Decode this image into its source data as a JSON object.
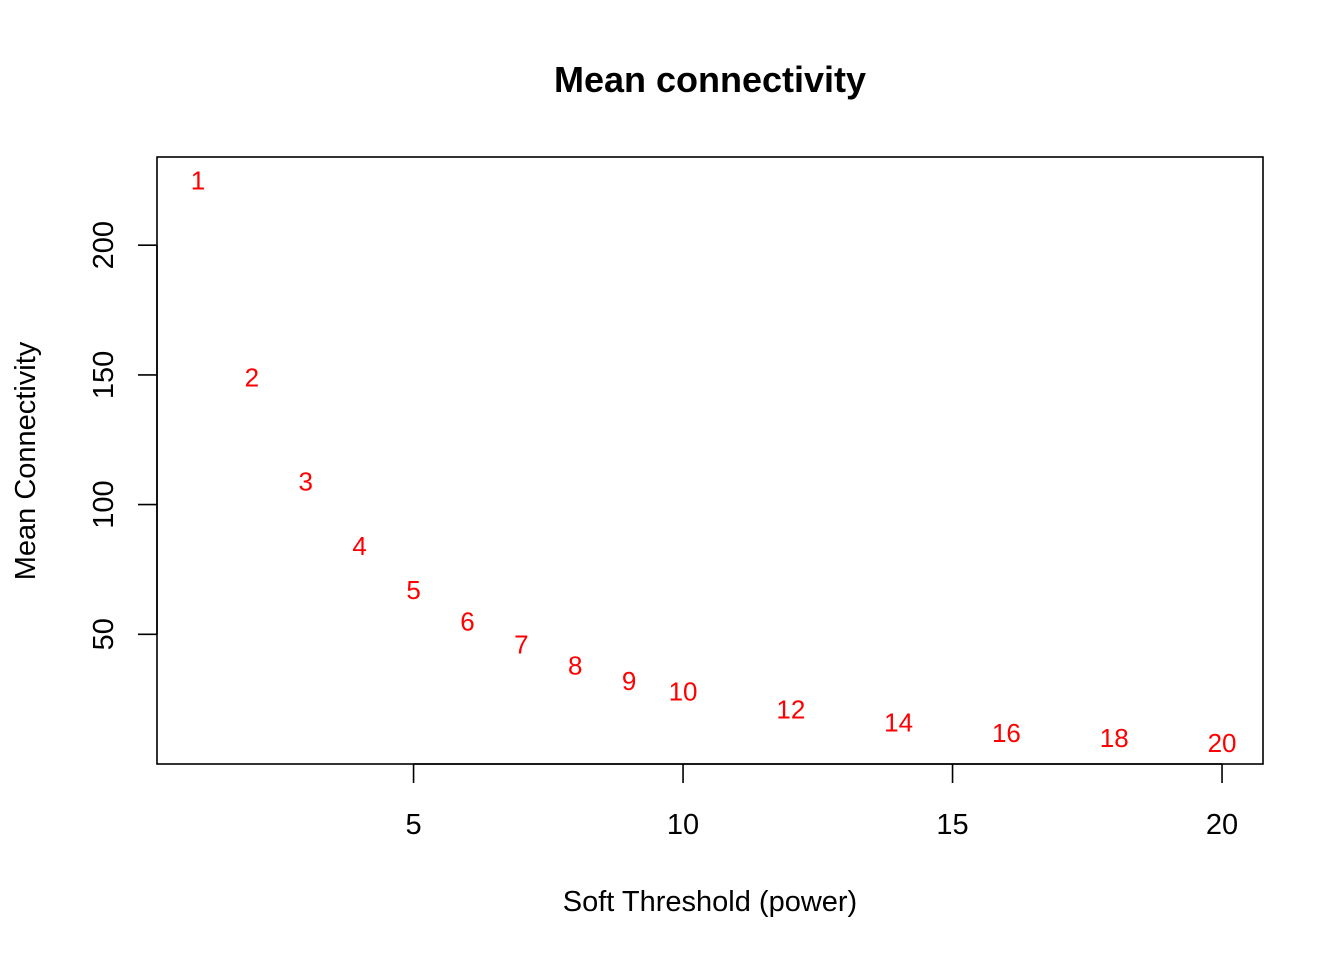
{
  "chart_data": {
    "type": "scatter",
    "title": "Mean connectivity",
    "xlabel": "Soft Threshold (power)",
    "ylabel": "Mean Connectivity",
    "xlim": [
      0.24,
      20.76
    ],
    "ylim": [
      0,
      234
    ],
    "x_ticks": [
      5,
      10,
      15,
      20
    ],
    "y_ticks": [
      50,
      100,
      150,
      200
    ],
    "grid": false,
    "legend": "none",
    "marker_color": "#FF0000",
    "points": [
      {
        "x": 1,
        "y": 225,
        "label": "1"
      },
      {
        "x": 2,
        "y": 149,
        "label": "2"
      },
      {
        "x": 3,
        "y": 109,
        "label": "3"
      },
      {
        "x": 4,
        "y": 84,
        "label": "4"
      },
      {
        "x": 5,
        "y": 67,
        "label": "5"
      },
      {
        "x": 6,
        "y": 55,
        "label": "6"
      },
      {
        "x": 7,
        "y": 46,
        "label": "7"
      },
      {
        "x": 8,
        "y": 38,
        "label": "8"
      },
      {
        "x": 9,
        "y": 32,
        "label": "9"
      },
      {
        "x": 10,
        "y": 28,
        "label": "10"
      },
      {
        "x": 12,
        "y": 21,
        "label": "12"
      },
      {
        "x": 14,
        "y": 16,
        "label": "14"
      },
      {
        "x": 16,
        "y": 12,
        "label": "16"
      },
      {
        "x": 18,
        "y": 10,
        "label": "18"
      },
      {
        "x": 20,
        "y": 8,
        "label": "20"
      }
    ]
  }
}
